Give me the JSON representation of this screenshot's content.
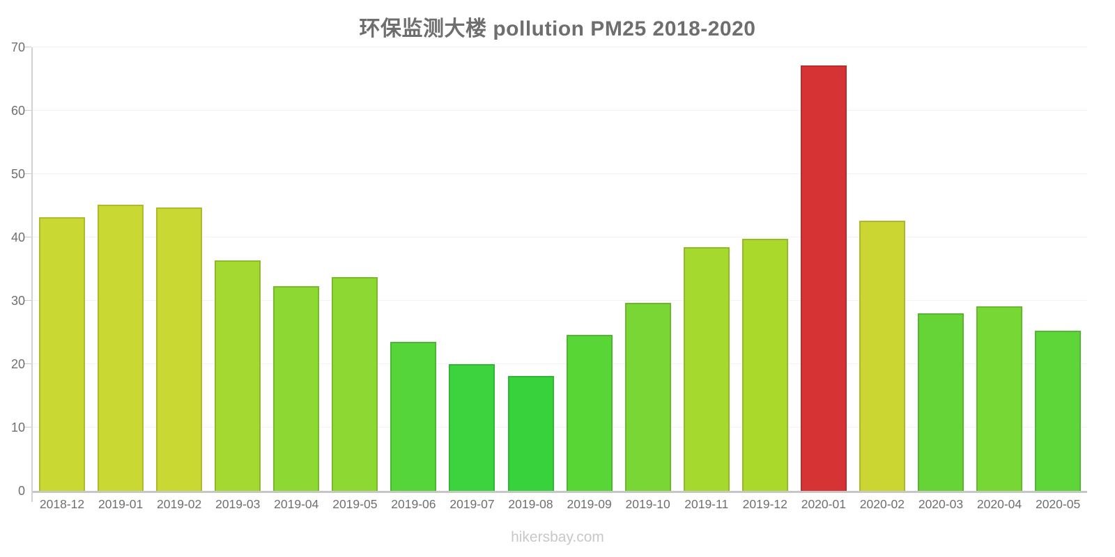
{
  "page": {
    "title": "环保监测大楼 pollution PM25 2018-2020",
    "footer": "hikersbay.com"
  },
  "chart_data": {
    "type": "bar",
    "title": "环保监测大楼 pollution PM25 2018-2020",
    "categories": [
      "2018-12",
      "2019-01",
      "2019-02",
      "2019-03",
      "2019-04",
      "2019-05",
      "2019-06",
      "2019-07",
      "2019-08",
      "2019-09",
      "2019-10",
      "2019-11",
      "2019-12",
      "2020-01",
      "2020-02",
      "2020-03",
      "2020-04",
      "2020-05"
    ],
    "values": [
      43.2,
      45.2,
      44.7,
      36.4,
      32.3,
      33.7,
      23.5,
      20.0,
      18.1,
      24.6,
      29.7,
      38.5,
      39.8,
      67.1,
      42.6,
      28.0,
      29.1,
      25.3
    ],
    "bar_colors": [
      "#c9d832",
      "#c9d832",
      "#c9d832",
      "#a3d930",
      "#8dd832",
      "#8dd832",
      "#55d53a",
      "#3cd33e",
      "#38d23c",
      "#58d636",
      "#7ad634",
      "#a6d92e",
      "#aad92c",
      "#d63434",
      "#ccd633",
      "#66d436",
      "#77d734",
      "#5ed63a"
    ],
    "xlabel": "",
    "ylabel": "",
    "ylim": [
      0,
      70
    ],
    "yticks": [
      0,
      10,
      20,
      30,
      40,
      50,
      60,
      70
    ],
    "grid": true,
    "legend": false
  },
  "style": {
    "title_color": "#6e6e6e",
    "label_color": "#6f6f6f",
    "grid_color": "#f3f3f3",
    "axis_color": "#c9c9c9",
    "footer_color": "#c8c8c8"
  }
}
